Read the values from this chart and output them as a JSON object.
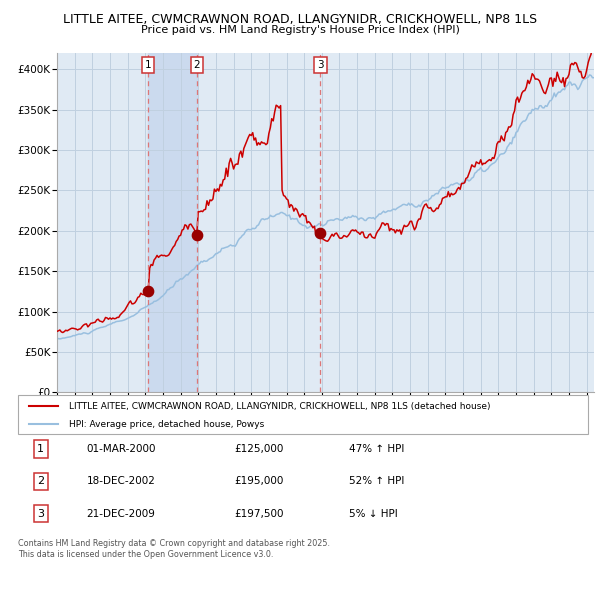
{
  "title": "LITTLE AITEE, CWMCRAWNON ROAD, LLANGYNIDR, CRICKHOWELL, NP8 1LS",
  "subtitle": "Price paid vs. HM Land Registry's House Price Index (HPI)",
  "red_label": "LITTLE AITEE, CWMCRAWNON ROAD, LLANGYNIDR, CRICKHOWELL, NP8 1LS (detached house)",
  "blue_label": "HPI: Average price, detached house, Powys",
  "sale1_date_label": "01-MAR-2000",
  "sale1_price_label": "£125,000",
  "sale1_hpi_label": "47% ↑ HPI",
  "sale2_date_label": "18-DEC-2002",
  "sale2_price_label": "£195,000",
  "sale2_hpi_label": "52% ↑ HPI",
  "sale3_date_label": "21-DEC-2009",
  "sale3_price_label": "£197,500",
  "sale3_hpi_label": "5% ↓ HPI",
  "footer": "Contains HM Land Registry data © Crown copyright and database right 2025.\nThis data is licensed under the Open Government Licence v3.0.",
  "yticks": [
    0,
    50000,
    100000,
    150000,
    200000,
    250000,
    300000,
    350000,
    400000
  ],
  "ytick_labels": [
    "£0",
    "£50K",
    "£100K",
    "£150K",
    "£200K",
    "£250K",
    "£300K",
    "£350K",
    "£400K"
  ],
  "red_color": "#cc0000",
  "blue_color": "#99bfdf",
  "dot_color": "#990000",
  "grid_color": "#c0d0e0",
  "plot_bg": "#e0eaf4",
  "shade_color": "#c8d8ee",
  "vline_color": "#dd7777",
  "fig_bg": "#ffffff"
}
